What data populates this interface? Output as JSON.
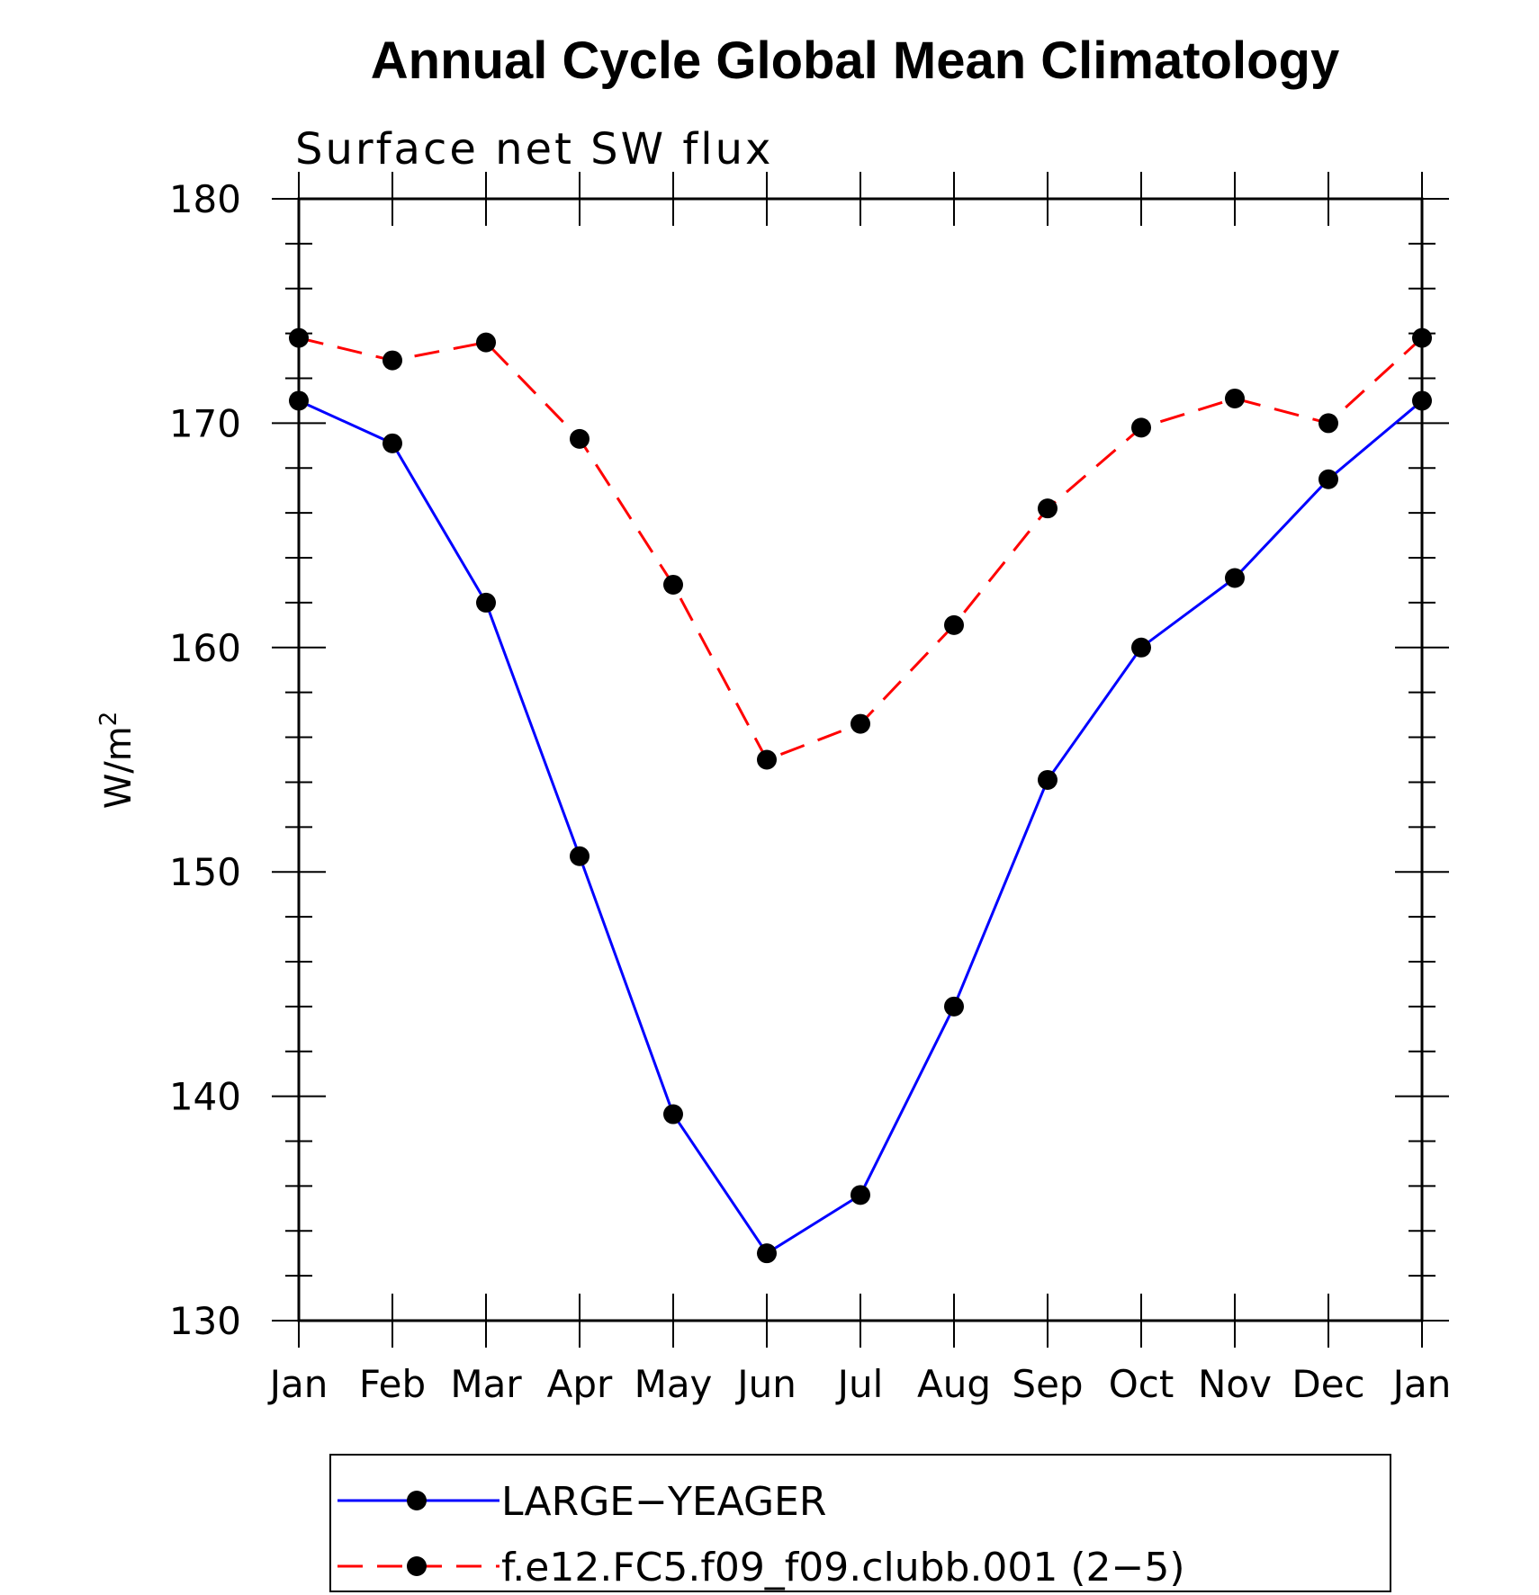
{
  "chart_data": {
    "type": "line",
    "title": "Annual Cycle Global Mean Climatology",
    "subtitle": "Surface net SW flux",
    "ylabel": "W/m",
    "ylabel_superscript": "2",
    "xlabel": "",
    "ylim": [
      130,
      180
    ],
    "yticks": [
      130,
      140,
      150,
      160,
      170,
      180
    ],
    "categories": [
      "Jan",
      "Feb",
      "Mar",
      "Apr",
      "May",
      "Jun",
      "Jul",
      "Aug",
      "Sep",
      "Oct",
      "Nov",
      "Dec",
      "Jan"
    ],
    "grid": false,
    "legend_position": "bottom",
    "series": [
      {
        "name": "LARGE−YEAGER",
        "color": "#0000ff",
        "line_style": "solid",
        "marker": "filled-circle",
        "values": [
          171.0,
          169.1,
          162.0,
          150.7,
          139.2,
          133.0,
          135.6,
          144.0,
          154.1,
          160.0,
          163.1,
          167.5,
          171.0
        ]
      },
      {
        "name": "f.e12.FC5.f09_f09.clubb.001 (2−5)",
        "color": "#ff0000",
        "line_style": "dashed",
        "marker": "filled-circle",
        "values": [
          173.8,
          172.8,
          173.6,
          169.3,
          162.8,
          155.0,
          156.6,
          161.0,
          166.2,
          169.8,
          171.1,
          170.0,
          173.8
        ]
      }
    ]
  }
}
